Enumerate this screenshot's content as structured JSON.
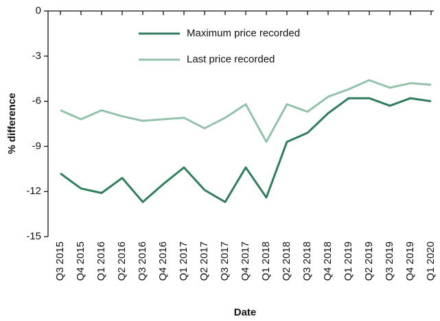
{
  "chart_data": {
    "type": "line",
    "x_label": "Date",
    "y_label": "% difference",
    "categories": [
      "Q3 2015",
      "Q4 2015",
      "Q1 2016",
      "Q2 2016",
      "Q3 2016",
      "Q4 2016",
      "Q1 2017",
      "Q2 2017",
      "Q3 2017",
      "Q4 2017",
      "Q1 2018",
      "Q2 2018",
      "Q3 2018",
      "Q4 2018",
      "Q1 2019",
      "Q2 2019",
      "Q3 2019",
      "Q4 2019",
      "Q1 2020"
    ],
    "series": [
      {
        "name": "Maximum price recorded",
        "color": "#2e7d5b",
        "values": [
          -10.8,
          -11.8,
          -12.1,
          -11.1,
          -12.7,
          -11.5,
          -10.4,
          -11.9,
          -12.7,
          -10.4,
          -12.4,
          -8.7,
          -8.1,
          -6.8,
          -5.8,
          -5.8,
          -6.3,
          -5.8,
          -6.0
        ]
      },
      {
        "name": "Last price recorded",
        "color": "#93c2ab",
        "values": [
          -6.6,
          -7.2,
          -6.6,
          -7.0,
          -7.3,
          -7.2,
          -7.1,
          -7.8,
          -7.1,
          -6.2,
          -8.7,
          -6.2,
          -6.7,
          -5.7,
          -5.2,
          -4.6,
          -5.1,
          -4.8,
          -4.9
        ]
      }
    ],
    "ylim": [
      -15,
      0
    ],
    "yticks": [
      -15,
      -12,
      -9,
      -6,
      -3,
      0
    ],
    "legend": "top"
  }
}
